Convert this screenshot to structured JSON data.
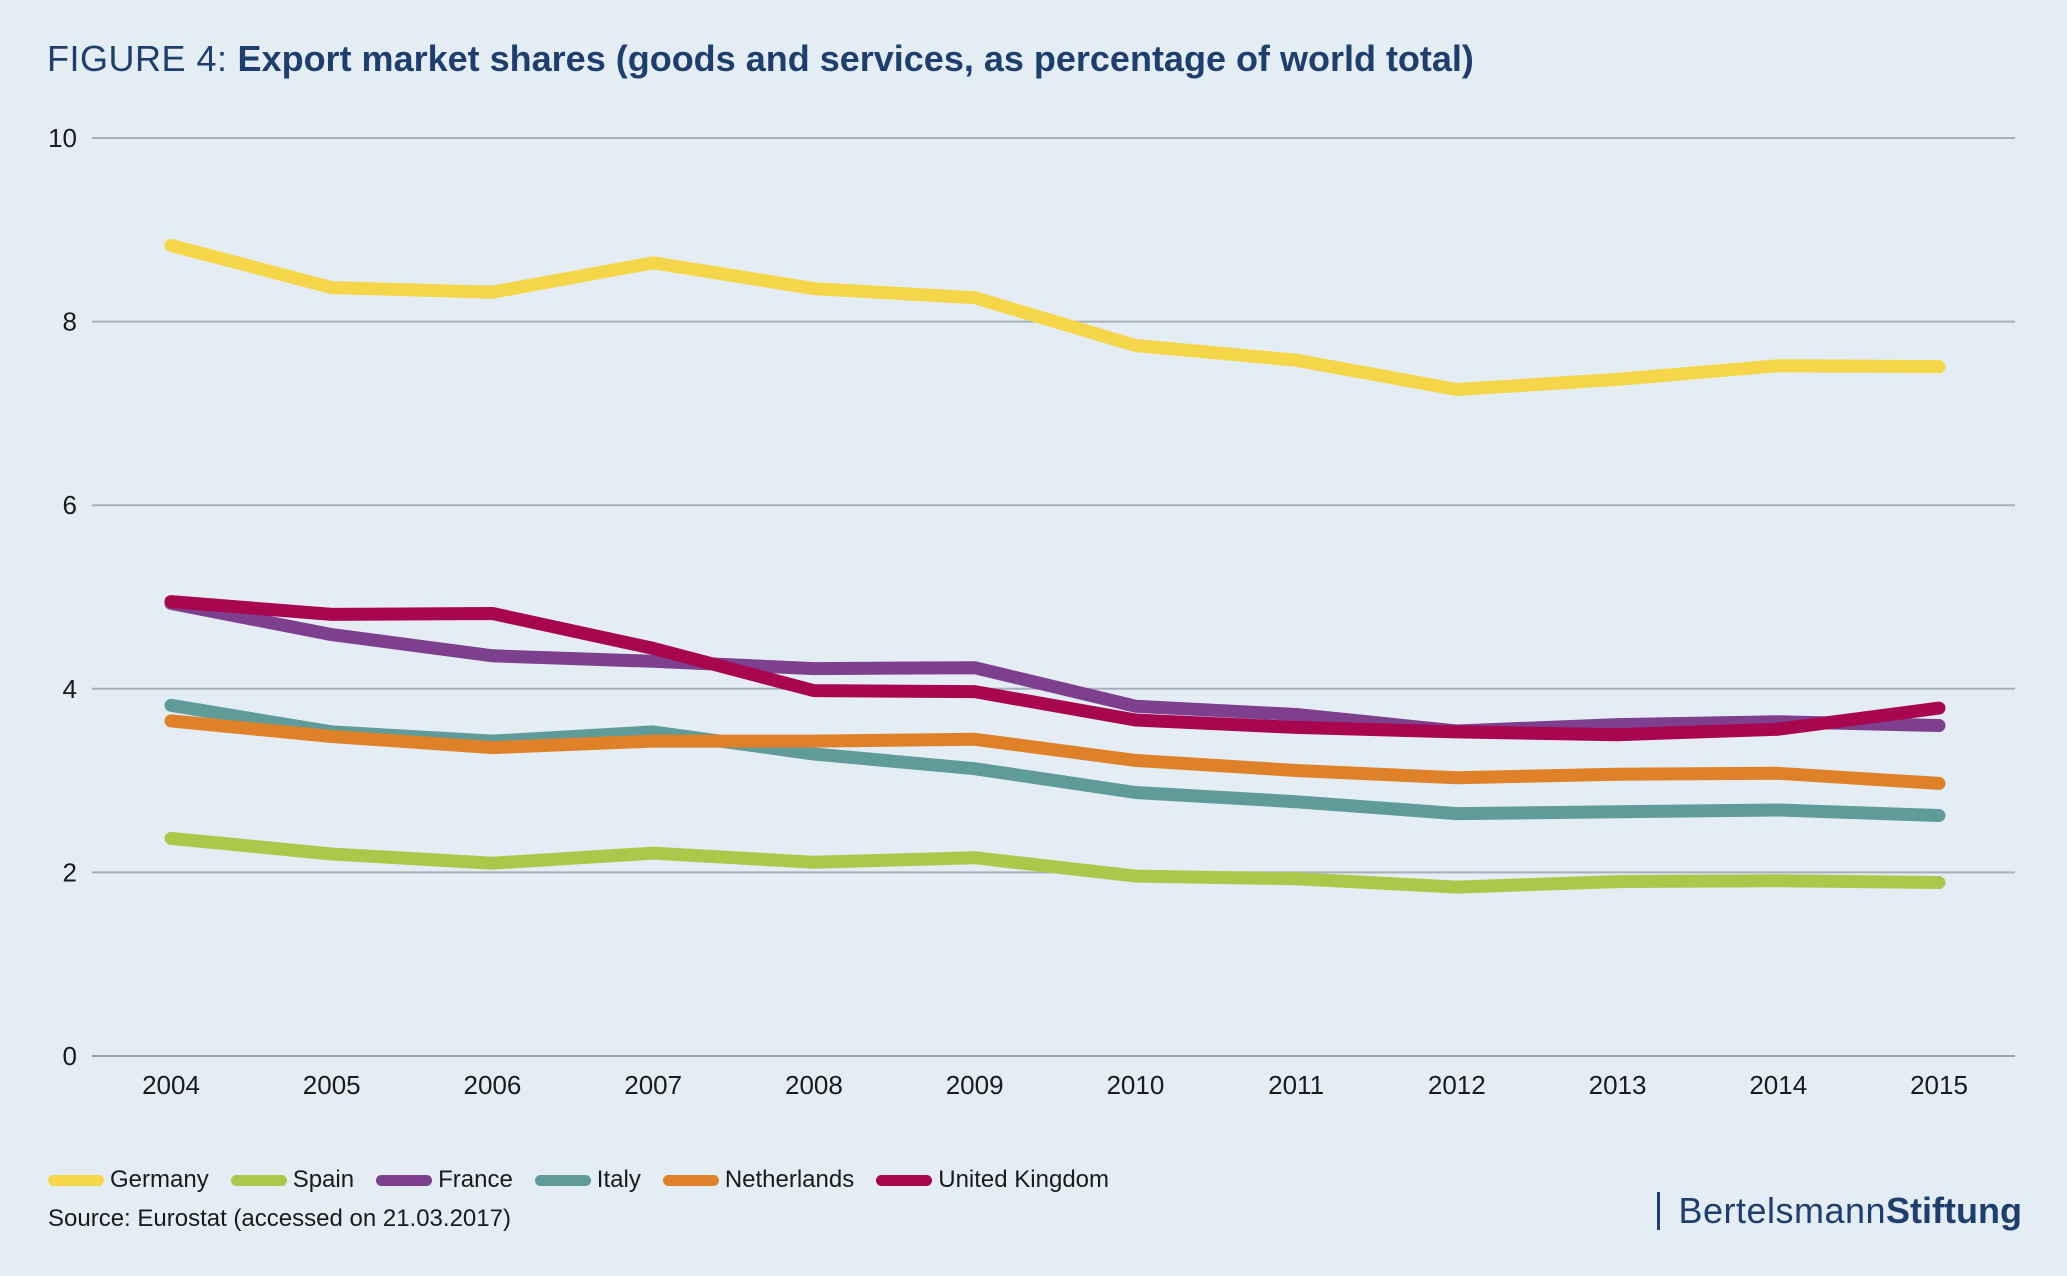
{
  "title": {
    "prefix": "FIGURE 4:",
    "main": "Export market shares (goods and services, as percentage of world total)"
  },
  "source": "Source: Eurostat (accessed on 21.03.2017)",
  "logo": {
    "part1": "Bertelsmann",
    "part2": "Stiftung"
  },
  "chart_data": {
    "type": "line",
    "title": "Export market shares (goods and services, as percentage of world total)",
    "xlabel": "",
    "ylabel": "",
    "x": [
      "2004",
      "2005",
      "2006",
      "2007",
      "2008",
      "2009",
      "2010",
      "2011",
      "2012",
      "2013",
      "2014",
      "2015"
    ],
    "ylim": [
      0,
      10
    ],
    "yticks": [
      0,
      2,
      4,
      6,
      8,
      10
    ],
    "grid": true,
    "legend_position": "bottom-left",
    "series": [
      {
        "name": "Germany",
        "color": "#f5d649",
        "values": [
          8.83,
          8.37,
          8.32,
          8.64,
          8.36,
          8.26,
          7.74,
          7.58,
          7.26,
          7.37,
          7.52,
          7.51
        ]
      },
      {
        "name": "Spain",
        "color": "#acc84b",
        "values": [
          2.37,
          2.2,
          2.1,
          2.21,
          2.11,
          2.16,
          1.96,
          1.93,
          1.84,
          1.9,
          1.91,
          1.89
        ]
      },
      {
        "name": "France",
        "color": "#7d3f8e",
        "values": [
          4.93,
          4.59,
          4.36,
          4.3,
          4.22,
          4.23,
          3.81,
          3.72,
          3.54,
          3.61,
          3.64,
          3.6
        ]
      },
      {
        "name": "Italy",
        "color": "#5f9b98",
        "values": [
          3.82,
          3.53,
          3.43,
          3.53,
          3.29,
          3.13,
          2.87,
          2.77,
          2.64,
          2.66,
          2.68,
          2.62
        ]
      },
      {
        "name": "Netherlands",
        "color": "#de8129",
        "values": [
          3.65,
          3.48,
          3.36,
          3.43,
          3.43,
          3.45,
          3.22,
          3.11,
          3.03,
          3.07,
          3.08,
          2.97
        ]
      },
      {
        "name": "United Kingdom",
        "color": "#a8064e",
        "values": [
          4.95,
          4.81,
          4.82,
          4.44,
          3.98,
          3.97,
          3.66,
          3.58,
          3.53,
          3.5,
          3.56,
          3.79
        ]
      }
    ]
  }
}
